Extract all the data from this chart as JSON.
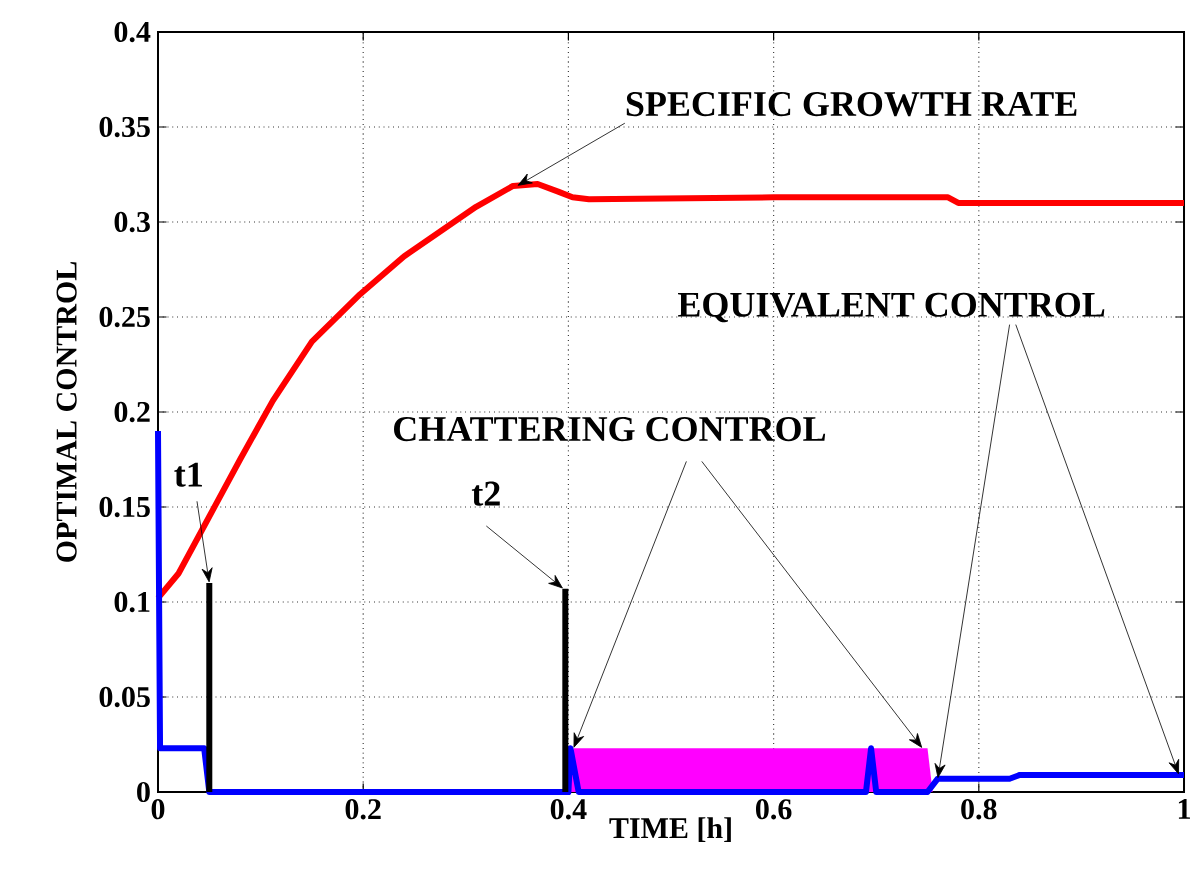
{
  "chart_data": {
    "type": "line",
    "xlabel": "TIME [h]",
    "ylabel": "OPTIMAL CONTROL",
    "xlim": [
      0,
      1
    ],
    "ylim": [
      0,
      0.4
    ],
    "xticks": [
      0,
      0.2,
      0.4,
      0.6,
      0.8,
      1
    ],
    "yticks": [
      0,
      0.05,
      0.1,
      0.15,
      0.2,
      0.25,
      0.3,
      0.35,
      0.4
    ],
    "grid": true,
    "series": [
      {
        "type": "area",
        "color": "#ff00ff",
        "x": [
          0.4,
          0.405,
          0.75,
          0.755
        ],
        "values": [
          0,
          0.023,
          0.023,
          0
        ]
      },
      {
        "color": "#ff0000",
        "x": [
          0,
          0.02,
          0.05,
          0.08,
          0.112,
          0.15,
          0.197,
          0.24,
          0.275,
          0.31,
          0.346,
          0.37,
          0.39,
          0.404,
          0.42,
          0.6,
          0.77,
          0.78,
          1
        ],
        "values": [
          0.102,
          0.115,
          0.145,
          0.175,
          0.206,
          0.237,
          0.262,
          0.282,
          0.295,
          0.308,
          0.319,
          0.32,
          0.316,
          0.313,
          0.312,
          0.313,
          0.313,
          0.31,
          0.31
        ]
      },
      {
        "color": "#0000ff",
        "x": [
          0,
          0.002,
          0.045,
          0.05,
          0.4,
          0.402,
          0.41,
          0.69,
          0.695,
          0.7,
          0.75,
          0.76,
          0.83,
          0.84,
          1
        ],
        "values": [
          0.19,
          0.023,
          0.023,
          0,
          0,
          0.023,
          0,
          0,
          0.023,
          0,
          0,
          0.007,
          0.007,
          0.009,
          0.009
        ]
      },
      {
        "color": "#000000",
        "x": [
          0.05,
          0.05
        ],
        "values": [
          0,
          0.11
        ]
      },
      {
        "color": "#000000",
        "x": [
          0.397,
          0.397
        ],
        "values": [
          0,
          0.107
        ]
      }
    ],
    "annotations": [
      {
        "text": "SPECIFIC GROWTH RATE",
        "x": 0.35,
        "y": 0.319
      },
      {
        "text": "t1",
        "x": 0.05,
        "y": 0.11
      },
      {
        "text": "t2",
        "x": 0.395,
        "y": 0.107
      },
      {
        "text": "CHATTERING CONTROL",
        "x": 0.405,
        "y": 0.023
      },
      {
        "text": "EQUIVALENT CONTROL",
        "x": 0.76,
        "y": 0.007
      }
    ]
  }
}
